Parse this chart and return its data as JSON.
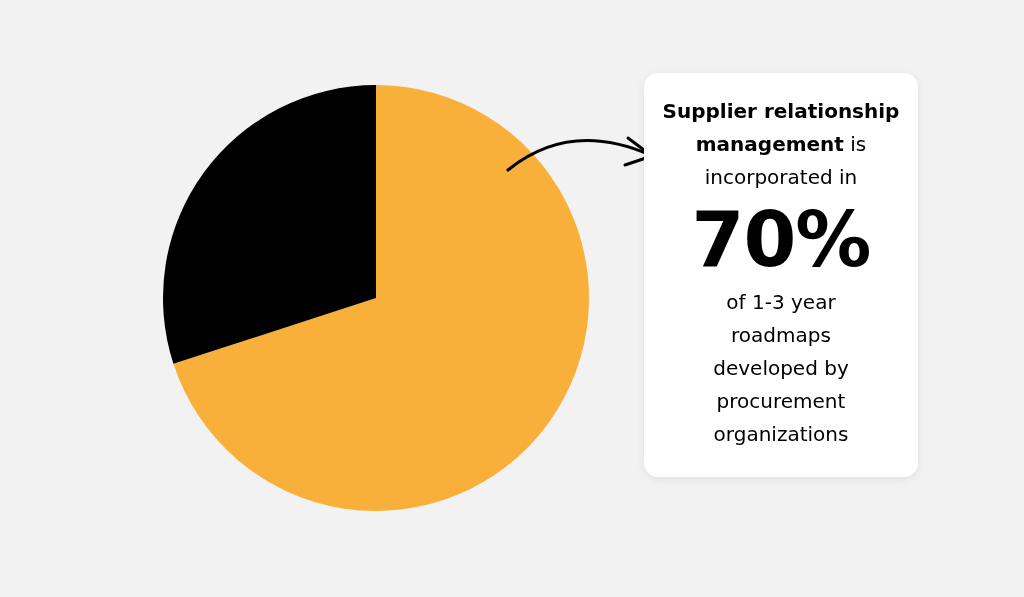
{
  "chart_data": {
    "type": "pie",
    "categories": [
      null,
      null
    ],
    "values": [
      70,
      30
    ],
    "colors": [
      "#f9b03b",
      "#000000"
    ],
    "value_labels": [
      "70%",
      null
    ],
    "annotations": [
      "Supplier relationship management",
      " is incorporated in",
      "of 1-3 year roadmaps developed by procurement organizations"
    ]
  }
}
